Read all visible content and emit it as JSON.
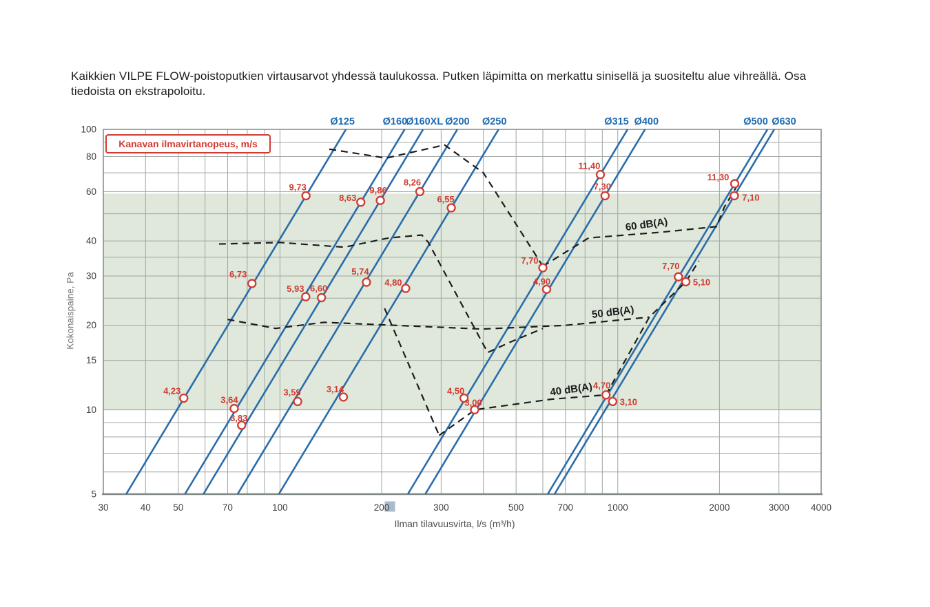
{
  "page": {
    "title": "Kaikkien VILPE FLOW-poistoputkien virtausarvot yhdessä taulukossa. Putken läpimitta on merkattu sinisellä ja suositeltu alue vihreällä. Osa tiedoista on ekstrapoloitu."
  },
  "chart_data": {
    "type": "line",
    "title": "",
    "xlabel": "Ilman tilavuusvirta, l/s (m³/h)",
    "ylabel": "Kokonaispaine, Pa",
    "x_scale": "log",
    "y_scale": "log",
    "xlim": [
      30,
      4000
    ],
    "ylim": [
      5,
      100
    ],
    "x_ticks": [
      30,
      40,
      50,
      70,
      100,
      200,
      300,
      500,
      700,
      1000,
      2000,
      3000,
      4000
    ],
    "y_ticks": [
      5,
      10,
      15,
      20,
      30,
      40,
      60,
      80,
      100
    ],
    "x_grid": [
      30,
      40,
      50,
      60,
      70,
      80,
      90,
      100,
      200,
      300,
      400,
      500,
      600,
      700,
      800,
      900,
      1000,
      2000,
      3000,
      4000
    ],
    "y_grid": [
      5,
      6,
      7,
      8,
      9,
      10,
      15,
      20,
      25,
      30,
      35,
      40,
      50,
      60,
      70,
      80,
      90,
      100
    ],
    "highlighted_x_tick": {
      "value": 200,
      "color": "#a9bccd"
    },
    "legend_box": "Kanavan ilmavirtanopeus, m/s",
    "recommended_band": {
      "p_min": 10,
      "p_max": 60,
      "color": "#dfe8da"
    },
    "colors": {
      "diameter_line": "#2a6caa",
      "diameter_label": "#1e6bb2",
      "point": "#d03b32",
      "contour": "#1c1c1c",
      "grid": "#9fa5a3",
      "border": "#87908e",
      "tick_text": "#3d3d3d"
    },
    "series": [
      {
        "label": "Ø125",
        "label_dx": -5,
        "points": [
          {
            "v": "9,73",
            "q": 119.4,
            "p": 58.0,
            "dx": -12,
            "dy": -12
          },
          {
            "v": "6,73",
            "q": 82.6,
            "p": 28.2,
            "dx": -20,
            "dy": -13
          },
          {
            "v": "4,23",
            "q": 51.9,
            "p": 11.0,
            "dx": -17,
            "dy": -10
          }
        ]
      },
      {
        "label": "Ø160",
        "label_dx": -14,
        "points": [
          {
            "v": "8,63",
            "q": 173.5,
            "p": 55.0,
            "dx": -19,
            "dy": -6
          },
          {
            "v": "5,93",
            "q": 119.2,
            "p": 25.3,
            "dx": -15,
            "dy": -11
          },
          {
            "v": "3,64",
            "q": 73.2,
            "p": 10.1,
            "dx": -7,
            "dy": -12
          }
        ]
      },
      {
        "label": "Ø160XL",
        "label_dx": 2,
        "points": [
          {
            "v": "9,86",
            "q": 198.2,
            "p": 55.8,
            "dx": -3,
            "dy": -14
          },
          {
            "v": "6,60",
            "q": 132.7,
            "p": 25.1,
            "dx": -4,
            "dy": -13
          },
          {
            "v": "3,83",
            "q": 77.0,
            "p": 8.8,
            "dx": -4,
            "dy": -10
          }
        ]
      },
      {
        "label": "Ø200",
        "label_dx": 0,
        "points": [
          {
            "v": "8,26",
            "q": 259.5,
            "p": 60.0,
            "dx": -11,
            "dy": -13
          },
          {
            "v": "5,74",
            "q": 180.3,
            "p": 28.5,
            "dx": -9,
            "dy": -15
          },
          {
            "v": "3,59",
            "q": 112.8,
            "p": 10.7,
            "dx": -8,
            "dy": -13
          }
        ]
      },
      {
        "label": "Ø250",
        "label_dx": -6,
        "points": [
          {
            "v": "6,55",
            "q": 321.5,
            "p": 52.5,
            "dx": -8,
            "dy": -12
          },
          {
            "v": "4,80",
            "q": 235.6,
            "p": 27.1,
            "dx": -18,
            "dy": -8
          },
          {
            "v": "3,14",
            "q": 154.1,
            "p": 11.1,
            "dx": -12,
            "dy": -11
          }
        ]
      },
      {
        "label": "Ø315",
        "label_dx": -16,
        "points": [
          {
            "v": "11,40",
            "q": 888,
            "p": 69.0,
            "dx": -16,
            "dy": -12
          },
          {
            "v": "7,70",
            "q": 600,
            "p": 32.1,
            "dx": -19,
            "dy": -10
          },
          {
            "v": "4,50",
            "q": 350.7,
            "p": 11.0,
            "dx": -12,
            "dy": -10
          }
        ]
      },
      {
        "label": "Ø400",
        "label_dx": 2,
        "points": [
          {
            "v": "7,30",
            "q": 917,
            "p": 58.0,
            "dx": -4,
            "dy": -13
          },
          {
            "v": "4,90",
            "q": 615.7,
            "p": 26.9,
            "dx": -7,
            "dy": -11
          },
          {
            "v": "3,00",
            "q": 377,
            "p": 10.0,
            "dx": -2,
            "dy": -10
          }
        ]
      },
      {
        "label": "Ø500",
        "label_dx": -17,
        "points": [
          {
            "v": "11,30",
            "q": 2219,
            "p": 64.0,
            "dx": -24,
            "dy": -9
          },
          {
            "v": "7,70",
            "q": 1512,
            "p": 29.8,
            "dx": -11,
            "dy": -15
          },
          {
            "v": "4,70",
            "q": 923,
            "p": 11.3,
            "dx": -6,
            "dy": -13
          }
        ]
      },
      {
        "label": "Ø630",
        "label_dx": 14,
        "points": [
          {
            "v": "7,10",
            "q": 2213,
            "p": 58.0,
            "dx": 24,
            "dy": 3
          },
          {
            "v": "5,10",
            "q": 1590,
            "p": 28.6,
            "dx": 23,
            "dy": 1
          },
          {
            "v": "3,10",
            "q": 966,
            "p": 10.7,
            "dx": 23,
            "dy": 1
          }
        ]
      }
    ],
    "contours": [
      {
        "name": "envelope-top",
        "points": [
          [
            140,
            85
          ],
          [
            206,
            79
          ],
          [
            307,
            88
          ],
          [
            400,
            70
          ],
          [
            600,
            32.5
          ]
        ]
      },
      {
        "name": "contour-60db",
        "points": [
          [
            600,
            32.5
          ],
          [
            820,
            41
          ],
          [
            1350,
            43
          ],
          [
            1960,
            45
          ],
          [
            2070,
            53
          ],
          [
            2240,
            62
          ]
        ]
      },
      {
        "name": "envelope-mid",
        "points": [
          [
            66,
            39
          ],
          [
            100,
            39.5
          ],
          [
            155,
            38
          ],
          [
            210,
            41
          ],
          [
            263,
            42
          ],
          [
            275,
            39.5
          ],
          [
            412,
            16
          ],
          [
            479,
            17.4
          ],
          [
            600,
            19.5
          ]
        ]
      },
      {
        "name": "contour-50db",
        "points": [
          [
            70,
            21
          ],
          [
            97,
            19.5
          ],
          [
            135,
            20.5
          ],
          [
            397,
            19.4
          ],
          [
            700,
            20
          ],
          [
            1240,
            21.4
          ]
        ]
      },
      {
        "name": "branch-down",
        "points": [
          [
            204,
            23
          ],
          [
            296,
            8.1
          ]
        ]
      },
      {
        "name": "contour-40db",
        "points": [
          [
            296,
            8.1
          ],
          [
            378,
            10
          ],
          [
            635,
            10.9
          ],
          [
            923,
            11.3
          ]
        ]
      },
      {
        "name": "branch-up",
        "points": [
          [
            923,
            11.3
          ],
          [
            1240,
            21.4
          ],
          [
            1590,
            28.6
          ],
          [
            1740,
            34
          ]
        ]
      }
    ],
    "contour_labels": [
      {
        "text": "60 dB(A)",
        "q": 1220,
        "p": 44.6,
        "rot": -8
      },
      {
        "text": "50 dB(A)",
        "q": 970,
        "p": 21.7,
        "rot": -7
      },
      {
        "text": "40 dB(A)",
        "q": 730,
        "p": 11.5,
        "rot": -8
      }
    ]
  }
}
